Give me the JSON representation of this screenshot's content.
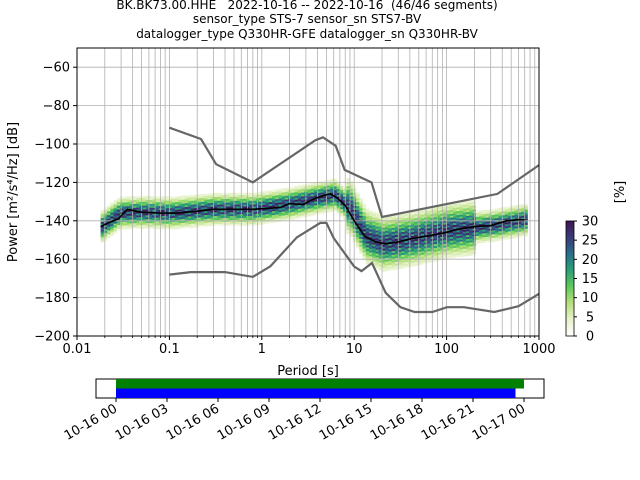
{
  "title_lines": [
    "BK.BK73.00.HHE   2022-10-16 -- 2022-10-16  (46/46 segments)",
    "sensor_type STS-7 sensor_sn STS7-BV",
    "datalogger_type Q330HR-GFE datalogger_sn Q330HR-BV"
  ],
  "chart_data": [
    {
      "type": "heatmap",
      "title": "BK.BK73.00.HHE   2022-10-16 -- 2022-10-16  (46/46 segments)",
      "xlabel": "Period [s]",
      "ylabel": "Power [m²/s⁴/Hz] [dB]",
      "xscale": "log",
      "xlim": [
        0.01,
        1000
      ],
      "ylim": [
        -200,
        -50
      ],
      "x_ticks": [
        "0.01",
        "0.1",
        "1",
        "10",
        "100",
        "1000"
      ],
      "y_ticks": [
        "−200",
        "−180",
        "−160",
        "−140",
        "−120",
        "−100",
        "−80",
        "−60"
      ],
      "grid": true,
      "colorbar": {
        "label": "[%]",
        "range": [
          0,
          30
        ],
        "ticks": [
          "0",
          "5",
          "10",
          "15",
          "20",
          "25",
          "30"
        ],
        "colormap": [
          "#ffffff",
          "#e6f2c9",
          "#b5e07a",
          "#5cc95a",
          "#2aa079",
          "#2b6c8a",
          "#3a3a7a",
          "#3d1450"
        ]
      },
      "series": [
        {
          "role": "high noise model",
          "color": "#666666",
          "x": [
            0.1,
            0.22,
            0.32,
            0.8,
            3.8,
            4.6,
            6.3,
            7.9,
            15.4,
            20,
            354.8,
            1000
          ],
          "y": [
            -91.5,
            -97.4,
            -110.5,
            -120,
            -98,
            -96.5,
            -101,
            -113.5,
            -120,
            -138,
            -126,
            -111
          ]
        },
        {
          "role": "low noise model",
          "color": "#666666",
          "x": [
            0.1,
            0.17,
            0.4,
            0.8,
            1.24,
            2.4,
            4.3,
            5.0,
            6.0,
            10.0,
            12.0,
            15.6,
            21.9,
            31.6,
            45,
            70,
            101,
            154,
            328,
            600,
            1000
          ],
          "y": [
            -168,
            -166.7,
            -166.7,
            -169.2,
            -163.7,
            -148.6,
            -141.1,
            -141.1,
            -149,
            -163.8,
            -166.2,
            -162,
            -177.5,
            -185,
            -187.5,
            -187.5,
            -185,
            -185,
            -187.5,
            -184.5,
            -178
          ]
        },
        {
          "role": "mode",
          "color": "#000000",
          "x": [
            0.018,
            0.022,
            0.028,
            0.035,
            0.05,
            0.08,
            0.12,
            0.2,
            0.3,
            0.5,
            0.8,
            1.2,
            1.6,
            2.0,
            2.8,
            3.5,
            4.5,
            5.5,
            6.5,
            8,
            10,
            13,
            17,
            22,
            30,
            40,
            60,
            90,
            130,
            200,
            300,
            450,
            600,
            700
          ],
          "y": [
            -143,
            -141,
            -139,
            -134,
            -135.5,
            -136,
            -136,
            -135,
            -134,
            -134,
            -134,
            -133.5,
            -133,
            -131,
            -131.5,
            -129,
            -127,
            -126,
            -128,
            -132,
            -140,
            -148,
            -151,
            -152,
            -151,
            -149.5,
            -148,
            -146.5,
            -144.5,
            -143,
            -142.5,
            -140,
            -139.5,
            -139.5
          ]
        }
      ],
      "heatmap_band": {
        "center_x": [
          0.018,
          0.028,
          0.05,
          0.1,
          0.3,
          0.8,
          2,
          4,
          6,
          9,
          13,
          20,
          40,
          100,
          300,
          700
        ],
        "center_y": [
          -143,
          -136,
          -135.5,
          -136,
          -134,
          -134,
          -131,
          -128,
          -126.5,
          -134,
          -148,
          -152,
          -149.5,
          -145,
          -142.5,
          -139.5
        ]
      },
      "timeline": {
        "x_ticks": [
          "10-16 00",
          "10-16 03",
          "10-16 06",
          "10-16 09",
          "10-16 12",
          "10-16 15",
          "10-16 18",
          "10-16 21",
          "10-17 00"
        ],
        "bars": [
          {
            "role": "data available",
            "color": "#008000",
            "start_hour": 0,
            "end_hour": 24.0
          },
          {
            "role": "data used",
            "color": "#0000ff",
            "start_hour": 0,
            "end_hour": 23.5
          }
        ]
      }
    }
  ]
}
